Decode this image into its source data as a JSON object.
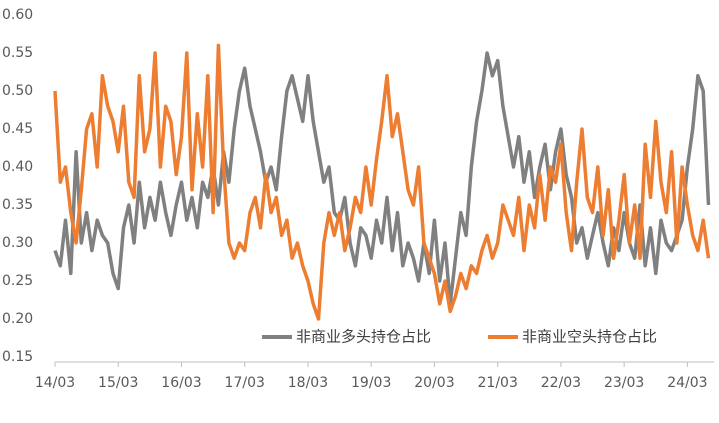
{
  "chart_data": {
    "type": "line",
    "categories": [
      "14/03",
      null,
      null,
      null,
      null,
      null,
      null,
      null,
      null,
      null,
      null,
      null,
      "15/03",
      null,
      null,
      null,
      null,
      null,
      null,
      null,
      null,
      null,
      null,
      null,
      "16/03",
      null,
      null,
      null,
      null,
      null,
      null,
      null,
      null,
      null,
      null,
      null,
      "17/03",
      null,
      null,
      null,
      null,
      null,
      null,
      null,
      null,
      null,
      null,
      null,
      "18/03",
      null,
      null,
      null,
      null,
      null,
      null,
      null,
      null,
      null,
      null,
      null,
      "19/03",
      null,
      null,
      null,
      null,
      null,
      null,
      null,
      null,
      null,
      null,
      null,
      "20/03",
      null,
      null,
      null,
      null,
      null,
      null,
      null,
      null,
      null,
      null,
      null,
      "21/03",
      null,
      null,
      null,
      null,
      null,
      null,
      null,
      null,
      null,
      null,
      null,
      "22/03",
      null,
      null,
      null,
      null,
      null,
      null,
      null,
      null,
      null,
      null,
      null,
      "23/03",
      null,
      null,
      null,
      null,
      null,
      null,
      null,
      null,
      null,
      null,
      null,
      "24/03",
      null,
      null,
      null,
      null
    ],
    "series": [
      {
        "name": "非商业多头持仓占比",
        "color": "#808080",
        "values": [
          0.29,
          0.27,
          0.33,
          0.26,
          0.42,
          0.3,
          0.34,
          0.29,
          0.33,
          0.31,
          0.3,
          0.26,
          0.24,
          0.32,
          0.35,
          0.3,
          0.38,
          0.32,
          0.36,
          0.33,
          0.38,
          0.34,
          0.31,
          0.35,
          0.38,
          0.33,
          0.36,
          0.32,
          0.38,
          0.36,
          0.4,
          0.35,
          0.42,
          0.38,
          0.45,
          0.5,
          0.53,
          0.48,
          0.45,
          0.42,
          0.38,
          0.4,
          0.37,
          0.44,
          0.5,
          0.52,
          0.49,
          0.46,
          0.52,
          0.46,
          0.42,
          0.38,
          0.4,
          0.34,
          0.33,
          0.36,
          0.3,
          0.27,
          0.32,
          0.31,
          0.28,
          0.33,
          0.3,
          0.36,
          0.29,
          0.34,
          0.27,
          0.3,
          0.28,
          0.25,
          0.3,
          0.26,
          0.33,
          0.25,
          0.3,
          0.22,
          0.28,
          0.34,
          0.31,
          0.4,
          0.46,
          0.5,
          0.55,
          0.52,
          0.54,
          0.48,
          0.44,
          0.4,
          0.44,
          0.38,
          0.42,
          0.36,
          0.4,
          0.43,
          0.37,
          0.42,
          0.45,
          0.39,
          0.36,
          0.3,
          0.32,
          0.28,
          0.31,
          0.34,
          0.3,
          0.27,
          0.32,
          0.29,
          0.34,
          0.3,
          0.28,
          0.35,
          0.27,
          0.32,
          0.26,
          0.33,
          0.3,
          0.29,
          0.31,
          0.33,
          0.4,
          0.45,
          0.52,
          0.5,
          0.35
        ]
      },
      {
        "name": "非商业空头持仓占比",
        "color": "#ed7d31",
        "values": [
          0.5,
          0.38,
          0.4,
          0.34,
          0.3,
          0.37,
          0.45,
          0.47,
          0.4,
          0.52,
          0.48,
          0.46,
          0.42,
          0.48,
          0.38,
          0.36,
          0.52,
          0.42,
          0.45,
          0.55,
          0.4,
          0.48,
          0.46,
          0.39,
          0.44,
          0.55,
          0.37,
          0.47,
          0.4,
          0.52,
          0.34,
          0.56,
          0.4,
          0.3,
          0.28,
          0.3,
          0.29,
          0.34,
          0.36,
          0.32,
          0.39,
          0.34,
          0.36,
          0.31,
          0.33,
          0.28,
          0.3,
          0.27,
          0.25,
          0.22,
          0.2,
          0.3,
          0.34,
          0.31,
          0.34,
          0.29,
          0.32,
          0.36,
          0.34,
          0.4,
          0.35,
          0.41,
          0.46,
          0.52,
          0.44,
          0.47,
          0.42,
          0.37,
          0.35,
          0.4,
          0.3,
          0.28,
          0.26,
          0.22,
          0.25,
          0.21,
          0.23,
          0.26,
          0.24,
          0.27,
          0.26,
          0.29,
          0.31,
          0.28,
          0.3,
          0.35,
          0.33,
          0.31,
          0.36,
          0.29,
          0.35,
          0.32,
          0.39,
          0.33,
          0.4,
          0.38,
          0.43,
          0.34,
          0.29,
          0.38,
          0.45,
          0.36,
          0.34,
          0.4,
          0.31,
          0.37,
          0.28,
          0.33,
          0.39,
          0.3,
          0.35,
          0.28,
          0.43,
          0.36,
          0.46,
          0.38,
          0.34,
          0.42,
          0.3,
          0.4,
          0.35,
          0.31,
          0.29,
          0.33,
          0.28
        ]
      }
    ],
    "ylim": [
      0.15,
      0.6
    ],
    "yticks": [
      {
        "value": 0.15,
        "label": "0.15"
      },
      {
        "value": 0.2,
        "label": "0.20"
      },
      {
        "value": 0.25,
        "label": "0.25"
      },
      {
        "value": 0.3,
        "label": "0.30"
      },
      {
        "value": 0.35,
        "label": "0.35"
      },
      {
        "value": 0.4,
        "label": "0.40"
      },
      {
        "value": 0.45,
        "label": "0.45"
      },
      {
        "value": 0.5,
        "label": "0.50"
      },
      {
        "value": 0.55,
        "label": "0.55"
      },
      {
        "value": 0.6,
        "label": "0.60"
      }
    ],
    "grid": false,
    "legend": "bottom-right"
  }
}
